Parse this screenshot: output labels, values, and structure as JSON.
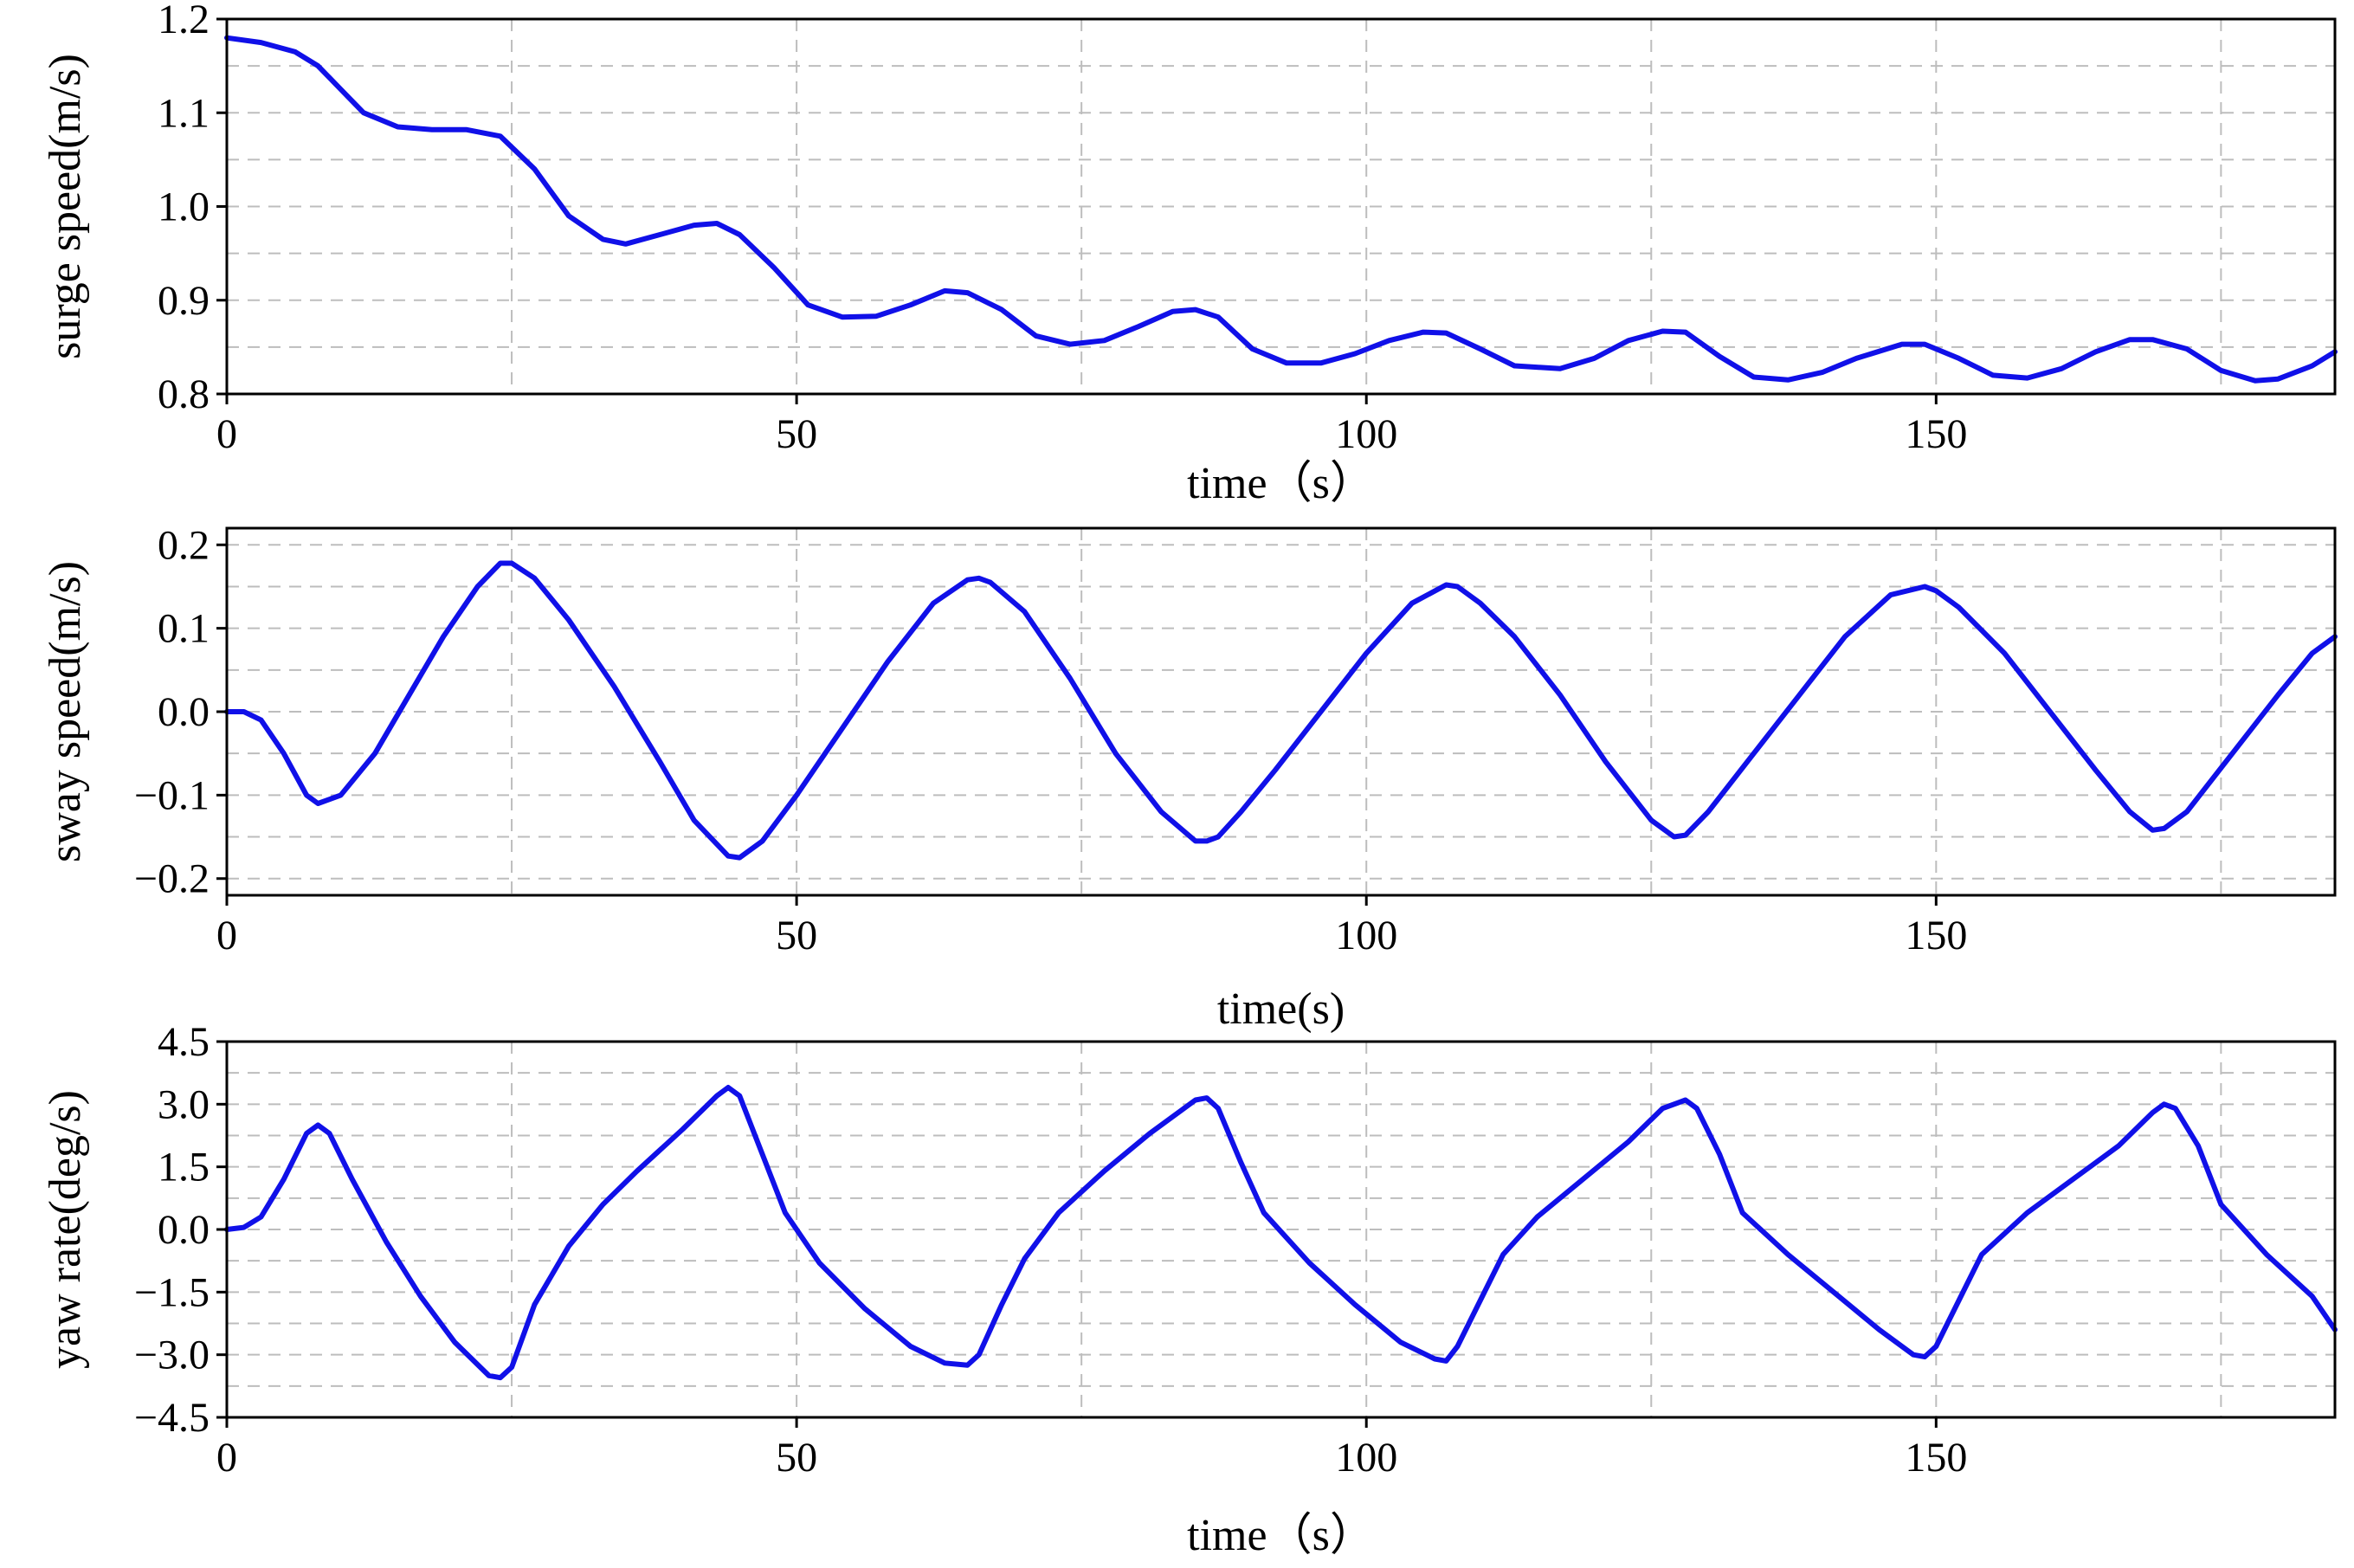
{
  "colors": {
    "series": "#1010e8",
    "grid": "#bdbdbd",
    "axes": "#000000"
  },
  "chart_data": [
    {
      "type": "line",
      "xlabel": "time（s）",
      "ylabel": "surge speed(m/s)",
      "xlim": [
        0,
        185
      ],
      "ylim": [
        0.8,
        1.2
      ],
      "xticks": [
        0,
        50,
        100,
        150
      ],
      "xtick_labels": [
        "0",
        "50",
        "100",
        "150"
      ],
      "yticks": [
        0.8,
        0.9,
        1.0,
        1.1,
        1.2
      ],
      "ytick_labels": [
        "0.8",
        "0.9",
        "1.0",
        "1.1",
        "1.2"
      ],
      "grid": true,
      "series": [
        {
          "x": [
            0,
            3,
            6,
            8,
            10,
            12,
            15,
            18,
            21,
            24,
            27,
            30,
            33,
            35,
            38,
            41,
            43,
            45,
            48,
            51,
            54,
            57,
            60,
            63,
            65,
            68,
            71,
            74,
            77,
            80,
            83,
            85,
            87,
            90,
            93,
            96,
            99,
            102,
            105,
            107,
            110,
            113,
            117,
            120,
            123,
            126,
            128,
            131,
            134,
            137,
            140,
            143,
            147,
            149,
            152,
            155,
            158,
            161,
            164,
            167,
            169,
            172,
            175,
            178,
            180,
            183,
            185
          ],
          "y": [
            1.18,
            1.175,
            1.165,
            1.15,
            1.125,
            1.1,
            1.085,
            1.082,
            1.082,
            1.075,
            1.04,
            0.99,
            0.965,
            0.96,
            0.97,
            0.98,
            0.982,
            0.97,
            0.935,
            0.895,
            0.882,
            0.883,
            0.895,
            0.91,
            0.908,
            0.89,
            0.862,
            0.853,
            0.857,
            0.872,
            0.888,
            0.89,
            0.882,
            0.848,
            0.833,
            0.833,
            0.843,
            0.857,
            0.866,
            0.865,
            0.848,
            0.83,
            0.827,
            0.838,
            0.857,
            0.867,
            0.866,
            0.84,
            0.818,
            0.815,
            0.823,
            0.838,
            0.853,
            0.853,
            0.838,
            0.82,
            0.817,
            0.827,
            0.845,
            0.858,
            0.858,
            0.848,
            0.825,
            0.814,
            0.816,
            0.83,
            0.845
          ]
        }
      ]
    },
    {
      "type": "line",
      "xlabel": "time(s)",
      "ylabel": "sway speed(m/s)",
      "xlim": [
        0,
        185
      ],
      "ylim": [
        -0.22,
        0.22
      ],
      "xticks": [
        0,
        50,
        100,
        150
      ],
      "xtick_labels": [
        "0",
        "50",
        "100",
        "150"
      ],
      "yticks": [
        -0.2,
        -0.1,
        0.0,
        0.1,
        0.2
      ],
      "ytick_labels": [
        "−0.2",
        "−0.1",
        "0.0",
        "0.1",
        "0.2"
      ],
      "grid": true,
      "series": [
        {
          "x": [
            0,
            1.5,
            3,
            5,
            7,
            8,
            10,
            13,
            16,
            19,
            22,
            24,
            25,
            27,
            30,
            34,
            38,
            41,
            44,
            45,
            47,
            50,
            54,
            58,
            62,
            65,
            66,
            67,
            70,
            74,
            78,
            82,
            85,
            86,
            87,
            89,
            92,
            96,
            100,
            104,
            107,
            108,
            110,
            113,
            117,
            121,
            125,
            127,
            128,
            130,
            134,
            138,
            142,
            146,
            149,
            150,
            152,
            156,
            160,
            164,
            167,
            169,
            170,
            172,
            176,
            180,
            183,
            185
          ],
          "y": [
            0.0,
            0.0,
            -0.01,
            -0.05,
            -0.1,
            -0.11,
            -0.1,
            -0.05,
            0.02,
            0.09,
            0.15,
            0.178,
            0.178,
            0.16,
            0.11,
            0.03,
            -0.06,
            -0.13,
            -0.173,
            -0.175,
            -0.155,
            -0.1,
            -0.02,
            0.06,
            0.13,
            0.158,
            0.16,
            0.155,
            0.12,
            0.04,
            -0.05,
            -0.12,
            -0.155,
            -0.155,
            -0.15,
            -0.12,
            -0.07,
            0.0,
            0.07,
            0.13,
            0.152,
            0.15,
            0.13,
            0.09,
            0.02,
            -0.06,
            -0.13,
            -0.15,
            -0.148,
            -0.12,
            -0.05,
            0.02,
            0.09,
            0.14,
            0.15,
            0.145,
            0.125,
            0.07,
            0.0,
            -0.07,
            -0.12,
            -0.142,
            -0.14,
            -0.12,
            -0.05,
            0.02,
            0.07,
            0.09
          ]
        }
      ]
    },
    {
      "type": "line",
      "xlabel": "time（s）",
      "ylabel": "yaw rate(deg/s)",
      "xlim": [
        0,
        185
      ],
      "ylim": [
        -4.5,
        4.5
      ],
      "xticks": [
        0,
        50,
        100,
        150
      ],
      "xtick_labels": [
        "0",
        "50",
        "100",
        "150"
      ],
      "yticks": [
        -4.5,
        -3.0,
        -1.5,
        0.0,
        1.5,
        3.0,
        4.5
      ],
      "ytick_labels": [
        "−4.5",
        "−3.0",
        "−1.5",
        "0.0",
        "1.5",
        "3.0",
        "4.5"
      ],
      "grid": true,
      "series": [
        {
          "x": [
            0,
            1.5,
            3,
            5,
            7,
            8,
            9,
            11,
            14,
            17,
            20,
            23,
            24,
            25,
            27,
            30,
            33,
            36,
            40,
            43,
            44,
            45,
            47,
            49,
            52,
            56,
            60,
            63,
            65,
            66,
            68,
            70,
            73,
            77,
            81,
            85,
            86,
            87,
            89,
            91,
            95,
            99,
            103,
            106,
            107,
            108,
            110,
            112,
            115,
            119,
            123,
            126,
            128,
            129,
            131,
            133,
            137,
            141,
            145,
            148,
            149,
            150,
            152,
            154,
            158,
            162,
            166,
            169,
            170,
            171,
            173,
            175,
            179,
            183,
            185
          ],
          "y": [
            0.0,
            0.05,
            0.3,
            1.2,
            2.3,
            2.5,
            2.3,
            1.2,
            -0.3,
            -1.6,
            -2.7,
            -3.5,
            -3.55,
            -3.3,
            -1.8,
            -0.4,
            0.6,
            1.4,
            2.4,
            3.2,
            3.4,
            3.2,
            1.8,
            0.4,
            -0.8,
            -1.9,
            -2.8,
            -3.2,
            -3.25,
            -3.0,
            -1.8,
            -0.7,
            0.4,
            1.4,
            2.3,
            3.1,
            3.15,
            2.9,
            1.6,
            0.4,
            -0.8,
            -1.8,
            -2.7,
            -3.1,
            -3.15,
            -2.8,
            -1.7,
            -0.6,
            0.3,
            1.2,
            2.1,
            2.9,
            3.1,
            2.9,
            1.8,
            0.4,
            -0.6,
            -1.5,
            -2.4,
            -3.0,
            -3.05,
            -2.8,
            -1.7,
            -0.6,
            0.4,
            1.2,
            2.0,
            2.8,
            3.0,
            2.9,
            2.0,
            0.6,
            -0.6,
            -1.6,
            -2.4
          ]
        }
      ]
    }
  ]
}
